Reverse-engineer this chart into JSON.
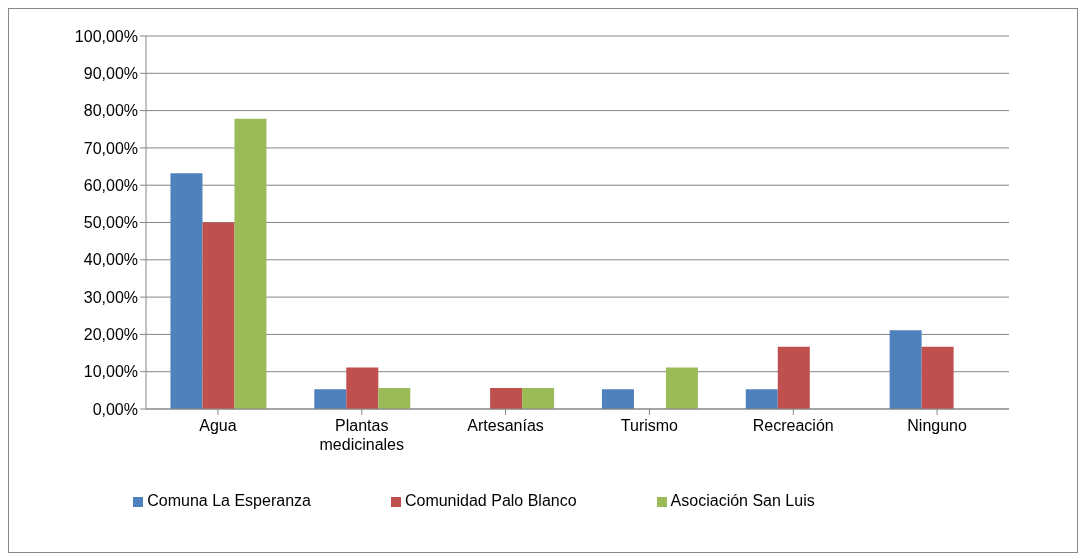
{
  "chart_data": {
    "type": "bar",
    "categories": [
      "Agua",
      "Plantas medicinales",
      "Artesanías",
      "Turismo",
      "Recreación",
      "Ninguno"
    ],
    "series": [
      {
        "name": "Comuna La Esperanza",
        "color": "#4f81bd",
        "values": [
          63.2,
          5.3,
          0,
          5.3,
          5.3,
          21.1
        ]
      },
      {
        "name": "Comunidad Palo Blanco",
        "color": "#c0504d",
        "values": [
          50,
          11.1,
          5.6,
          0,
          16.7,
          16.7
        ]
      },
      {
        "name": "Asociación San Luis",
        "color": "#9bbb59",
        "values": [
          77.8,
          5.6,
          5.6,
          11.1,
          0,
          0
        ]
      }
    ],
    "ylim": [
      0,
      100
    ],
    "yticks": [
      {
        "value": 0,
        "label": "0,00%"
      },
      {
        "value": 10,
        "label": "10,00%"
      },
      {
        "value": 20,
        "label": "20,00%"
      },
      {
        "value": 30,
        "label": "30,00%"
      },
      {
        "value": 40,
        "label": "40,00%"
      },
      {
        "value": 50,
        "label": "50,00%"
      },
      {
        "value": 60,
        "label": "60,00%"
      },
      {
        "value": 70,
        "label": "70,00%"
      },
      {
        "value": 80,
        "label": "80,00%"
      },
      {
        "value": 90,
        "label": "90,00%"
      },
      {
        "value": 100,
        "label": "100,00%"
      }
    ],
    "grid": "y",
    "legend": "bottom"
  }
}
